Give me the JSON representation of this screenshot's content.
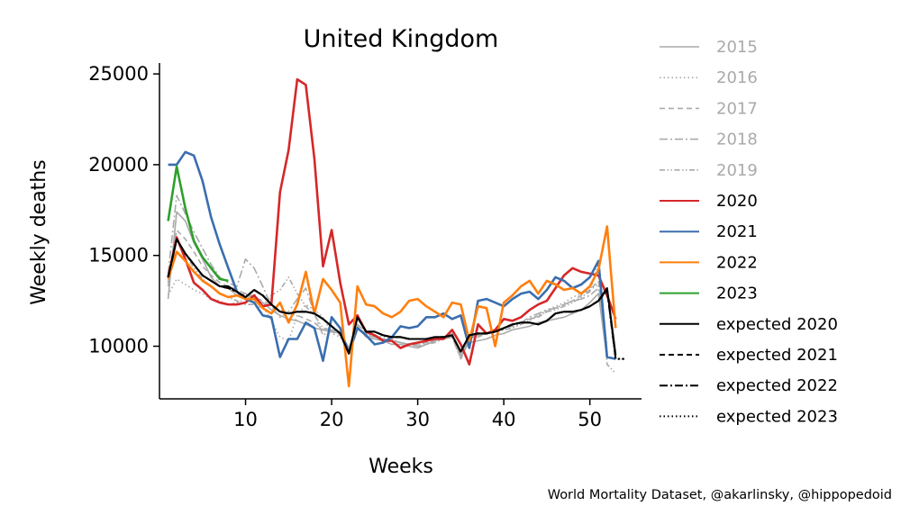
{
  "chart_data": {
    "type": "line",
    "title": "United Kingdom",
    "xlabel": "Weeks",
    "ylabel": "Weekly deaths",
    "xlim": [
      0,
      56
    ],
    "ylim": [
      7100,
      25600
    ],
    "xticks": [
      10,
      20,
      30,
      40,
      50
    ],
    "yticks": [
      10000,
      15000,
      20000,
      25000
    ],
    "grid": false,
    "legend_position": "right",
    "series": [
      {
        "name": "2015",
        "color": "#aaaaaa",
        "dash": "solid",
        "values": [
          12600,
          17400,
          16900,
          15700,
          14800,
          13800,
          13300,
          13200,
          12800,
          12900,
          12600,
          12400,
          12000,
          11700,
          11500,
          11400,
          11200,
          11000,
          10900,
          10800,
          10700,
          9900,
          11100,
          10500,
          10400,
          10300,
          10100,
          10100,
          10000,
          9900,
          10100,
          10300,
          10500,
          10700,
          9500,
          10200,
          10300,
          10400,
          10600,
          10700,
          10900,
          11000,
          11100,
          11300,
          11400,
          11500,
          11600,
          11800,
          12000,
          12400,
          12900,
          9300
        ]
      },
      {
        "name": "2016",
        "color": "#aaaaaa",
        "dash": "dotted",
        "values": [
          12800,
          13700,
          13400,
          13100,
          12900,
          12600,
          12500,
          12300,
          12400,
          12600,
          12900,
          12200,
          11400,
          10500,
          10300,
          11700,
          12300,
          12000,
          11600,
          10700,
          10500,
          9600,
          11000,
          10700,
          10600,
          10500,
          10400,
          10200,
          10100,
          10100,
          10200,
          10400,
          10500,
          10600,
          9300,
          10300,
          10600,
          10700,
          10800,
          10900,
          11000,
          11300,
          11500,
          11700,
          12000,
          12200,
          12400,
          12700,
          12900,
          13100,
          13400,
          10000
        ]
      },
      {
        "name": "2017",
        "color": "#aaaaaa",
        "dash": "dashed",
        "values": [
          13500,
          16400,
          15900,
          15200,
          14400,
          13900,
          13500,
          13300,
          13100,
          12900,
          12700,
          12500,
          12200,
          12000,
          11800,
          11700,
          11500,
          11300,
          10900,
          10800,
          10600,
          9700,
          11100,
          10600,
          10500,
          10400,
          10300,
          10200,
          10100,
          10100,
          10200,
          10300,
          10400,
          10500,
          9400,
          10400,
          10600,
          10700,
          10900,
          11000,
          11200,
          11300,
          11500,
          11600,
          11900,
          12100,
          12300,
          12500,
          12800,
          13100,
          13600,
          9400
        ]
      },
      {
        "name": "2018",
        "color": "#aaaaaa",
        "dash": "dashdot",
        "values": [
          14000,
          18300,
          17300,
          16300,
          15400,
          14500,
          13800,
          13500,
          13300,
          14800,
          14300,
          13300,
          12200,
          11600,
          11900,
          12600,
          13200,
          11800,
          10600,
          10900,
          10700,
          9700,
          11200,
          10800,
          10600,
          10400,
          10300,
          10200,
          10100,
          10000,
          10100,
          10300,
          10400,
          10500,
          9400,
          10500,
          10600,
          10700,
          10900,
          11000,
          11100,
          11300,
          11600,
          11800,
          12000,
          12100,
          12300,
          12500,
          12600,
          12800,
          13200,
          9500
        ]
      },
      {
        "name": "2019",
        "color": "#aaaaaa",
        "dash": "dashdotdot",
        "values": [
          13300,
          15900,
          15100,
          14300,
          13700,
          13300,
          12900,
          12700,
          12500,
          12300,
          12300,
          12100,
          12800,
          13100,
          13800,
          12900,
          12200,
          11700,
          11000,
          10900,
          10800,
          9900,
          11000,
          10700,
          10500,
          10400,
          10300,
          10200,
          10100,
          10000,
          10100,
          10200,
          10400,
          10500,
          9300,
          10300,
          10500,
          10700,
          10800,
          10900,
          11000,
          11200,
          11400,
          11700,
          11900,
          12000,
          12200,
          12400,
          12700,
          13000,
          14600,
          9000,
          8500
        ]
      },
      {
        "name": "2020",
        "color": "#d62728",
        "dash": "solid",
        "values": [
          13800,
          16000,
          14800,
          13500,
          13100,
          12600,
          12400,
          12300,
          12300,
          12400,
          12800,
          12200,
          12300,
          18500,
          20800,
          24700,
          24400,
          20300,
          14400,
          16400,
          13500,
          11200,
          11700,
          10800,
          10600,
          10300,
          10300,
          9900,
          10100,
          10200,
          10300,
          10400,
          10400,
          10900,
          10100,
          9000,
          11200,
          10700,
          10900,
          11500,
          11400,
          11600,
          12000,
          12300,
          12500,
          13200,
          13900,
          14300,
          14100,
          14000,
          13900,
          12800,
          11500
        ]
      },
      {
        "name": "2021",
        "color": "#3a6eaf",
        "dash": "solid",
        "values": [
          20000,
          20000,
          20700,
          20500,
          19100,
          17100,
          15600,
          14300,
          13000,
          12600,
          12400,
          11700,
          11600,
          9400,
          10400,
          10400,
          11300,
          11000,
          9200,
          11600,
          11000,
          9600,
          11000,
          10600,
          10100,
          10200,
          10500,
          11100,
          11000,
          11100,
          11600,
          11600,
          11800,
          11500,
          11700,
          9900,
          12500,
          12600,
          12400,
          12200,
          12600,
          12900,
          13000,
          12600,
          13100,
          13800,
          13600,
          13200,
          13400,
          13800,
          14700,
          9400,
          9300
        ]
      },
      {
        "name": "2022",
        "color": "#ff7f0e",
        "dash": "solid",
        "values": [
          13700,
          15200,
          14700,
          14100,
          13600,
          13300,
          12900,
          12700,
          12800,
          12600,
          12600,
          12100,
          11800,
          12400,
          11300,
          12300,
          14100,
          11800,
          13700,
          13100,
          12400,
          7800,
          13300,
          12300,
          12200,
          11800,
          11600,
          11900,
          12500,
          12600,
          12200,
          11900,
          11600,
          12400,
          12300,
          10300,
          12200,
          12100,
          10000,
          12400,
          12800,
          13300,
          13600,
          12900,
          13600,
          13400,
          13100,
          13200,
          12900,
          13300,
          14200,
          16600,
          11000
        ]
      },
      {
        "name": "2023",
        "color": "#2ca02c",
        "dash": "solid",
        "values": [
          16900,
          19900,
          17600,
          15800,
          14900,
          14300,
          13700,
          13600
        ]
      },
      {
        "name": "expected 2020",
        "color": "#000000",
        "dash": "solid",
        "values": [
          13800,
          15900,
          15100,
          14500,
          13900,
          13600,
          13300,
          13300,
          13000,
          12700,
          13100,
          12800,
          12300,
          11900,
          11800,
          11900,
          11900,
          11800,
          11500,
          11100,
          10700,
          9600,
          11600,
          10800,
          10800,
          10600,
          10500,
          10500,
          10400,
          10400,
          10400,
          10500,
          10500,
          10600,
          9700,
          10600,
          10700,
          10700,
          10800,
          11000,
          11200,
          11300,
          11300,
          11200,
          11400,
          11800,
          11900,
          11900,
          12000,
          12200,
          12500,
          13200,
          9500
        ]
      },
      {
        "name": "expected 2021",
        "color": "#000000",
        "dash": "dashed",
        "values": [
          13800,
          15900,
          15100,
          14500,
          13900,
          13600,
          13300,
          13200,
          13000,
          12700,
          13100,
          12800,
          12300,
          11900,
          11800,
          11900,
          11900,
          11800,
          11500,
          11100,
          10700,
          9600,
          11600,
          10800,
          10800,
          10600,
          10500,
          10500,
          10400,
          10400,
          10400,
          10500,
          10500,
          10600,
          9700,
          10600,
          10700,
          10700,
          10800,
          11000,
          11200,
          11300,
          11300,
          11200,
          11400,
          11800,
          11900,
          11900,
          12000,
          12200,
          12500,
          13100,
          9400
        ]
      },
      {
        "name": "expected 2022",
        "color": "#000000",
        "dash": "dashdot",
        "values": [
          13800,
          15900,
          15100,
          14500,
          13900,
          13600,
          13300,
          13200,
          13000,
          12700,
          13100,
          12800,
          12300,
          11900,
          11800,
          11900,
          11900,
          11800,
          11500,
          11100,
          10700,
          9600,
          11600,
          10800,
          10800,
          10600,
          10500,
          10500,
          10400,
          10400,
          10400,
          10500,
          10500,
          10600,
          9700,
          10600,
          10700,
          10700,
          10800,
          11000,
          11200,
          11300,
          11300,
          11200,
          11400,
          11800,
          11900,
          11900,
          12000,
          12200,
          12500,
          13100,
          9300,
          9300
        ]
      },
      {
        "name": "expected 2023",
        "color": "#000000",
        "dash": "dotted",
        "values": [
          13800,
          15900,
          15100,
          14500,
          13900,
          13600,
          13300,
          13200,
          13000,
          12700,
          13100,
          12800,
          12300,
          11900,
          11800,
          11900,
          11900,
          11800,
          11500,
          11100,
          10700,
          9600,
          11600,
          10800,
          10800,
          10600,
          10500,
          10500,
          10400,
          10400,
          10400,
          10500,
          10500,
          10600,
          9700,
          10600,
          10700,
          10700,
          10800,
          11000,
          11200,
          11300,
          11300,
          11200,
          11400,
          11800,
          11900,
          11900,
          12000,
          12200,
          12500,
          13100,
          9300,
          9300
        ]
      }
    ]
  },
  "legend_colors": {
    "past_years": "#aaaaaa",
    "current": "#000000"
  },
  "footer": {
    "credit": "World Mortality Dataset, @akarlinsky, @hippopedoid"
  }
}
